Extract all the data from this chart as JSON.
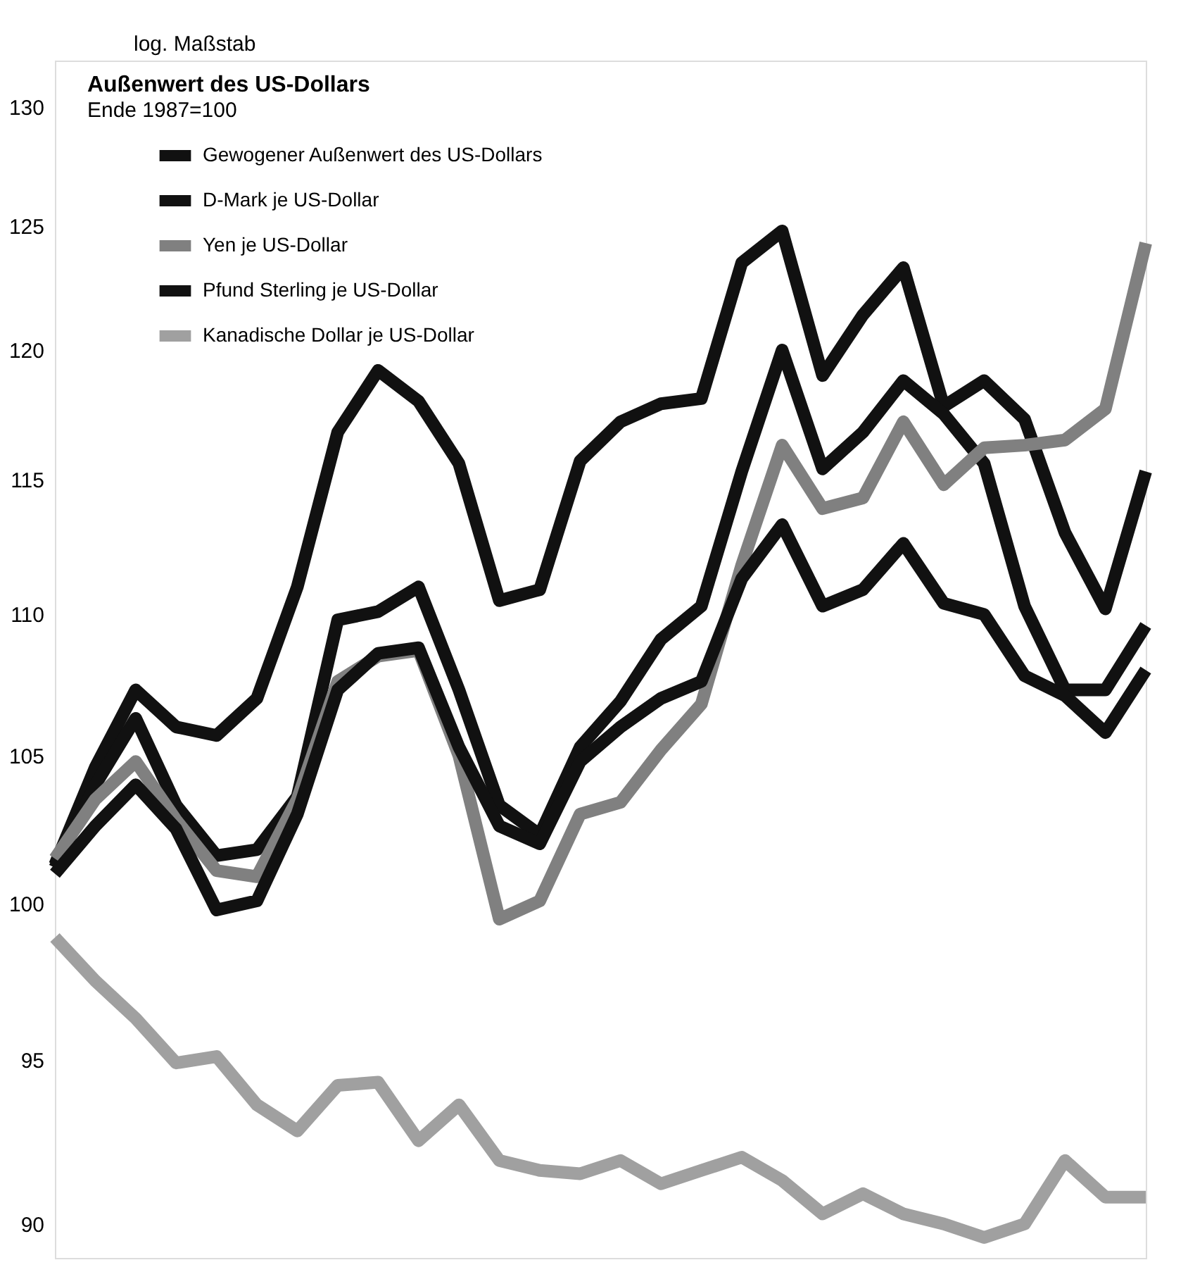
{
  "chart_data": {
    "type": "line",
    "title": "Außenwert des US-Dollars",
    "subtitle": "Ende 1987=100",
    "annotations": [
      "log. Maßstab"
    ],
    "categories": [
      null,
      null,
      null,
      null,
      null,
      null,
      null,
      null,
      null,
      null,
      null,
      null,
      null,
      null,
      null,
      null,
      null,
      null,
      null,
      null,
      null,
      null,
      null,
      null,
      null,
      null,
      null,
      null
    ],
    "series": [
      {
        "name": "Gewogener Außenwert des US-Dollars",
        "color": "#111111",
        "values": [
          101.3,
          104.6,
          107.3,
          106.0,
          105.7,
          107.0,
          111.0,
          116.8,
          119.2,
          118.0,
          115.6,
          110.5,
          110.9,
          115.7,
          117.2,
          117.9,
          118.1,
          123.5,
          124.8,
          119.0,
          121.4,
          123.3,
          117.8,
          118.8,
          117.3,
          113.0,
          110.2,
          115.3
        ]
      },
      {
        "name": "D-Mark je US-Dollar",
        "color": "#111111",
        "values": [
          101.2,
          104.0,
          106.3,
          103.3,
          101.6,
          101.8,
          103.6,
          109.8,
          110.1,
          111.0,
          107.3,
          103.3,
          102.3,
          105.3,
          106.9,
          109.1,
          110.3,
          115.3,
          120.0,
          115.4,
          116.8,
          118.8,
          117.5,
          115.6,
          110.3,
          107.3,
          107.3,
          109.6
        ]
      },
      {
        "name": "Yen je US-Dollar",
        "color": "#808080",
        "values": [
          101.5,
          103.5,
          104.8,
          102.8,
          101.1,
          100.9,
          103.5,
          107.6,
          108.5,
          108.7,
          105.0,
          99.5,
          100.1,
          103.0,
          103.4,
          105.2,
          106.8,
          111.8,
          116.3,
          113.9,
          114.3,
          117.2,
          114.8,
          116.2,
          116.3,
          116.5,
          117.7,
          124.3
        ]
      },
      {
        "name": "Pfund Sterling je US-Dollar",
        "color": "#111111",
        "values": [
          101.0,
          102.6,
          104.0,
          102.5,
          99.8,
          100.1,
          103.0,
          107.3,
          108.6,
          108.8,
          105.3,
          102.6,
          102.0,
          104.8,
          106.0,
          107.0,
          107.6,
          111.3,
          113.3,
          110.3,
          110.9,
          112.6,
          110.4,
          110.0,
          107.8,
          107.1,
          105.8,
          108.0
        ]
      },
      {
        "name": "Kanadische Dollar je US-Dollar",
        "color": "#a0a0a0",
        "values": [
          98.9,
          97.5,
          96.3,
          94.9,
          95.1,
          93.6,
          92.8,
          94.2,
          94.3,
          92.5,
          93.6,
          91.9,
          91.6,
          91.5,
          91.9,
          91.2,
          91.6,
          92.0,
          91.3,
          90.3,
          90.9,
          90.3,
          90.0,
          89.6,
          90.0,
          91.9,
          90.8,
          90.8
        ]
      }
    ],
    "log": true,
    "ylim": [
      89,
      132
    ],
    "yticks": [
      90,
      95,
      100,
      105,
      110,
      115,
      120,
      125,
      130
    ],
    "grid": false,
    "legend": "top left",
    "tick_labels": "y",
    "marker": "none",
    "line_style": "solid"
  }
}
